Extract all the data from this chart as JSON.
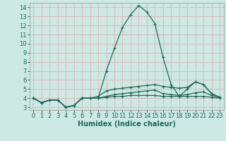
{
  "xlabel": "Humidex (Indice chaleur)",
  "background_color": "#cce9e4",
  "grid_color": "#ddbcbc",
  "line_color": "#1a6b5a",
  "spine_color": "#aaaaaa",
  "xlim": [
    -0.5,
    23.5
  ],
  "ylim": [
    2.7,
    14.5
  ],
  "yticks": [
    3,
    4,
    5,
    6,
    7,
    8,
    9,
    10,
    11,
    12,
    13,
    14
  ],
  "xticks": [
    0,
    1,
    2,
    3,
    4,
    5,
    6,
    7,
    8,
    9,
    10,
    11,
    12,
    13,
    14,
    15,
    16,
    17,
    18,
    19,
    20,
    21,
    22,
    23
  ],
  "series": [
    [
      4.0,
      3.5,
      3.8,
      3.8,
      3.0,
      3.2,
      4.0,
      4.0,
      4.0,
      7.0,
      9.5,
      11.8,
      13.2,
      14.2,
      13.5,
      12.2,
      8.5,
      5.5,
      4.2,
      5.0,
      5.8,
      5.5,
      4.5,
      4.1
    ],
    [
      4.0,
      3.5,
      3.8,
      3.8,
      3.0,
      3.2,
      4.0,
      4.0,
      4.2,
      4.8,
      5.0,
      5.1,
      5.2,
      5.3,
      5.4,
      5.5,
      5.3,
      5.2,
      5.1,
      5.2,
      5.8,
      5.5,
      4.5,
      4.1
    ],
    [
      4.0,
      3.5,
      3.8,
      3.8,
      3.0,
      3.2,
      4.0,
      4.0,
      4.0,
      4.2,
      4.4,
      4.5,
      4.6,
      4.7,
      4.8,
      4.9,
      4.5,
      4.4,
      4.3,
      4.4,
      4.6,
      4.7,
      4.3,
      4.1
    ],
    [
      4.0,
      3.5,
      3.8,
      3.8,
      3.0,
      3.2,
      4.0,
      4.0,
      4.0,
      4.1,
      4.2,
      4.2,
      4.3,
      4.3,
      4.3,
      4.3,
      4.2,
      4.2,
      4.2,
      4.2,
      4.2,
      4.2,
      4.1,
      4.0
    ]
  ],
  "xlabel_fontsize": 7,
  "tick_fontsize": 6
}
